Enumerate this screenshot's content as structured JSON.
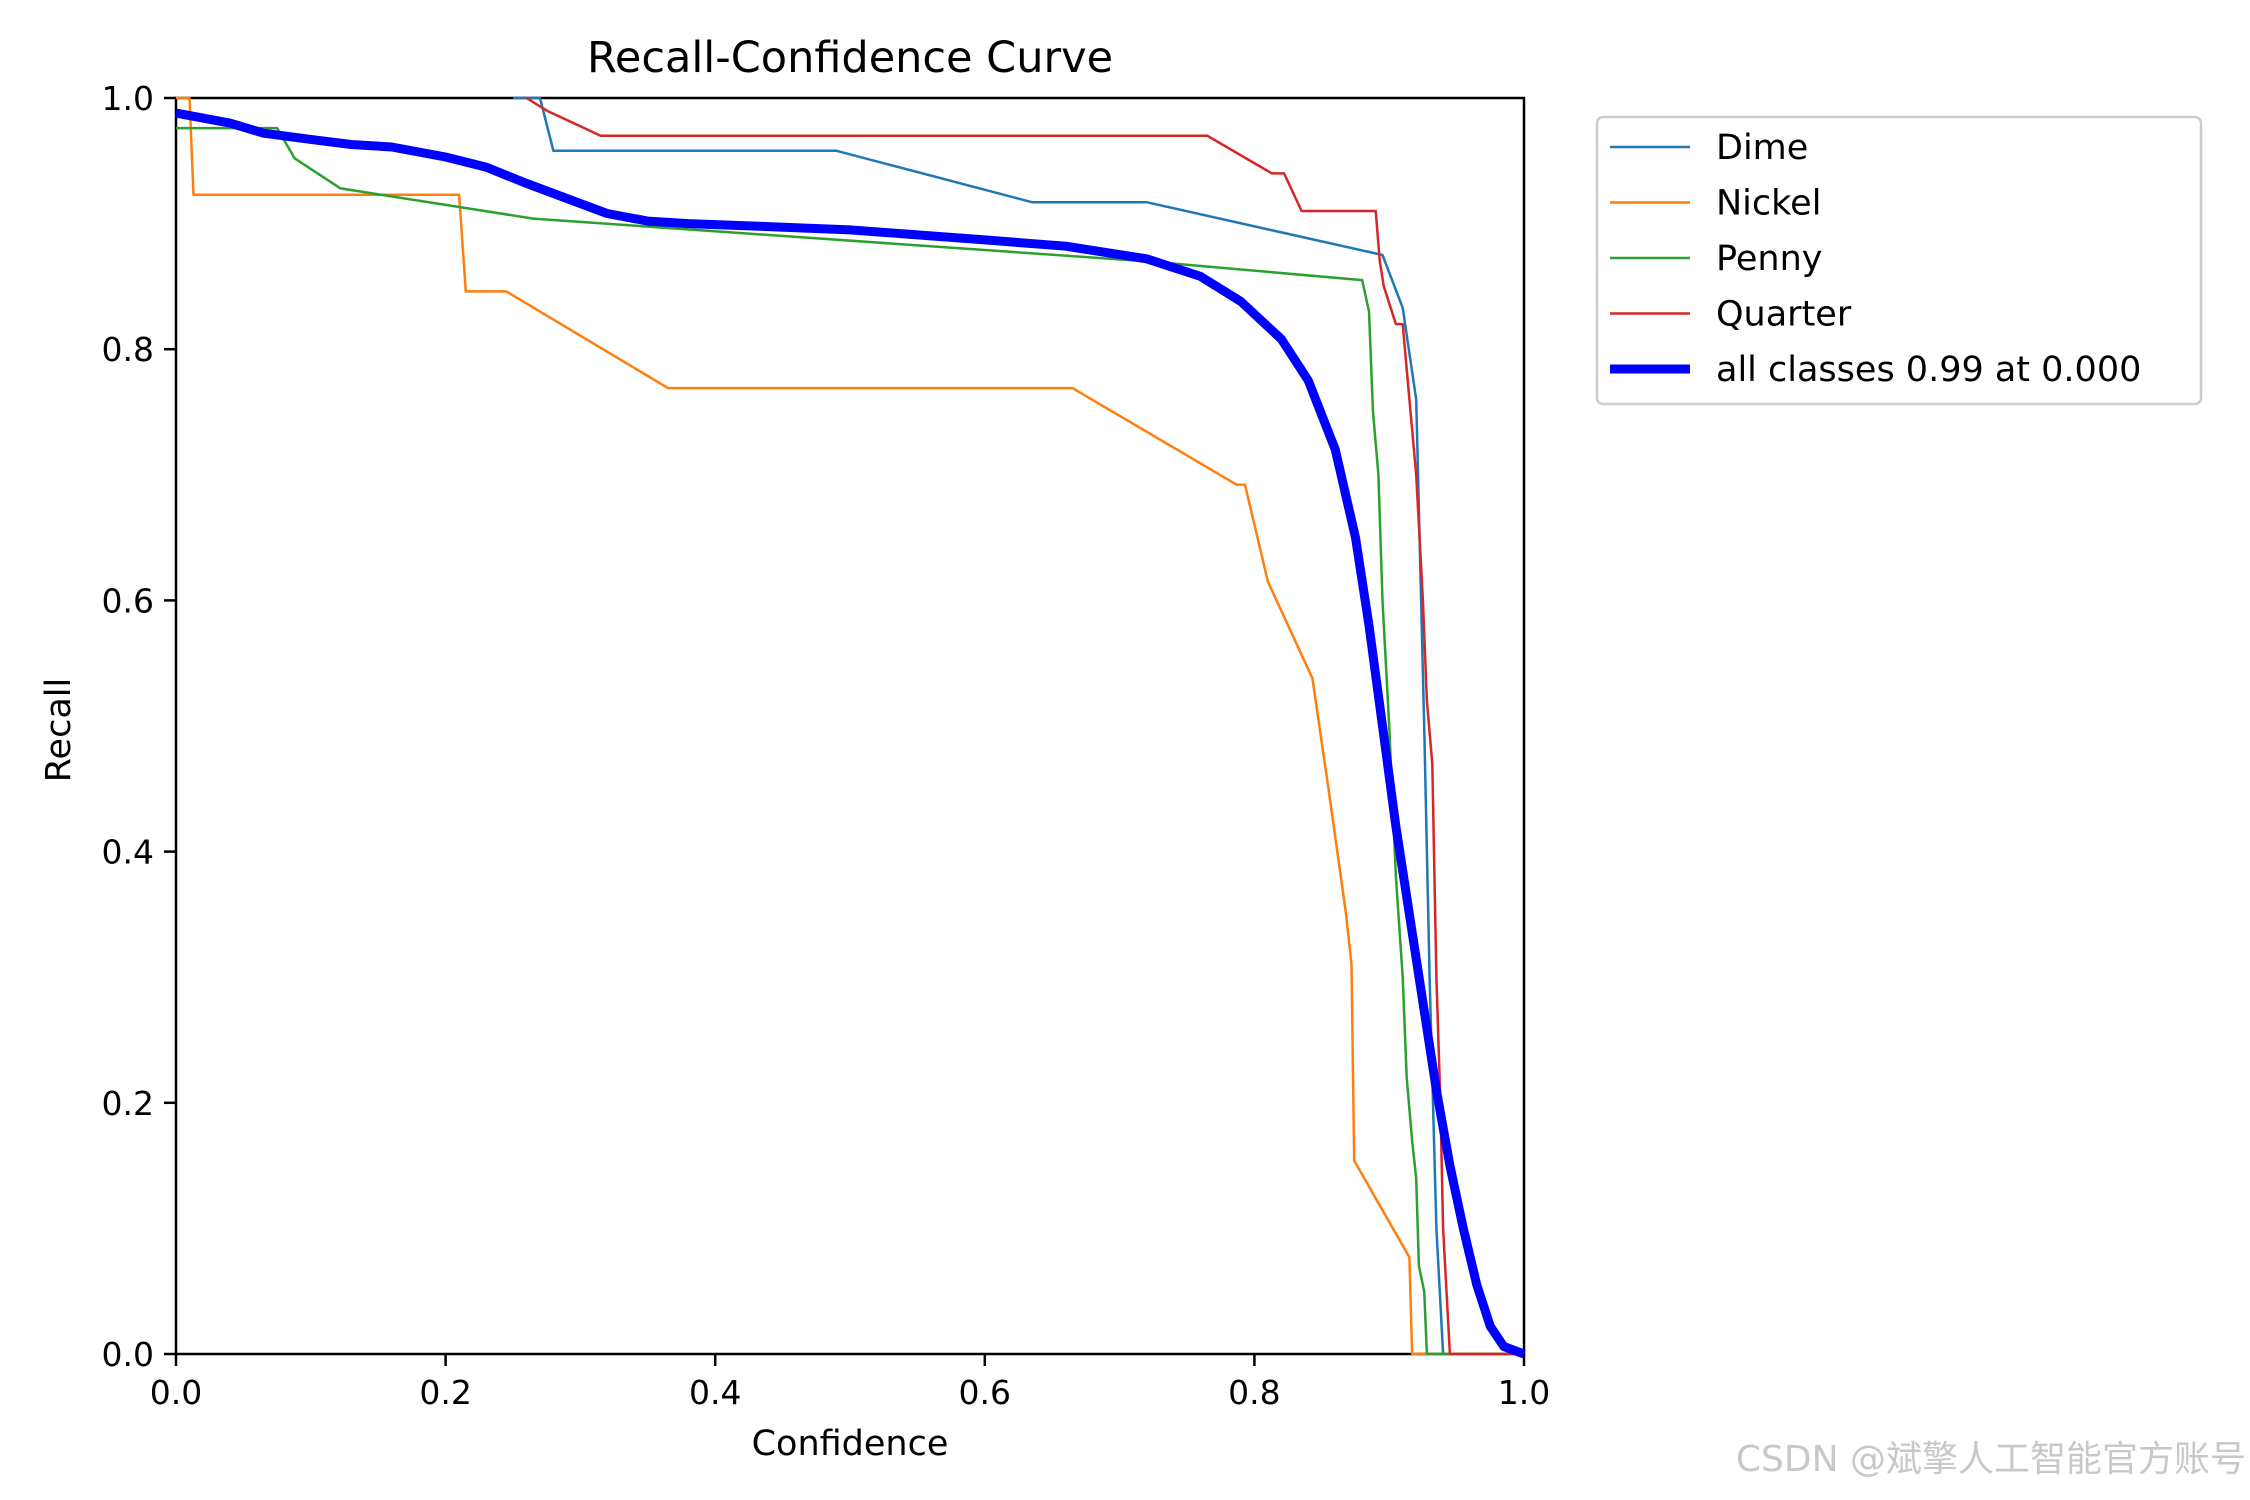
{
  "chart_data": {
    "type": "line",
    "title": "Recall-Confidence Curve",
    "xlabel": "Confidence",
    "ylabel": "Recall",
    "xlim": [
      0.0,
      1.0
    ],
    "ylim": [
      0.0,
      1.0
    ],
    "xticks": [
      "0.0",
      "0.2",
      "0.4",
      "0.6",
      "0.8",
      "1.0"
    ],
    "yticks": [
      "0.0",
      "0.2",
      "0.4",
      "0.6",
      "0.8",
      "1.0"
    ],
    "grid": false,
    "legend_position": "outside-top-right",
    "series": [
      {
        "name": "Dime",
        "color": "#1f77b4",
        "points": [
          [
            0.25,
            1.0
          ],
          [
            0.27,
            1.0
          ],
          [
            0.28,
            0.958
          ],
          [
            0.49,
            0.958
          ],
          [
            0.635,
            0.917
          ],
          [
            0.72,
            0.917
          ],
          [
            0.895,
            0.875
          ],
          [
            0.91,
            0.833
          ],
          [
            0.92,
            0.76
          ],
          [
            0.926,
            0.5
          ],
          [
            0.93,
            0.3
          ],
          [
            0.935,
            0.1
          ],
          [
            0.94,
            0.0
          ],
          [
            1.0,
            0.0
          ]
        ]
      },
      {
        "name": "Nickel",
        "color": "#ff7f0e",
        "points": [
          [
            0.0,
            1.0
          ],
          [
            0.01,
            1.0
          ],
          [
            0.013,
            0.923
          ],
          [
            0.21,
            0.923
          ],
          [
            0.215,
            0.846
          ],
          [
            0.245,
            0.846
          ],
          [
            0.365,
            0.769
          ],
          [
            0.665,
            0.769
          ],
          [
            0.787,
            0.692
          ],
          [
            0.793,
            0.692
          ],
          [
            0.81,
            0.615
          ],
          [
            0.843,
            0.538
          ],
          [
            0.855,
            0.45
          ],
          [
            0.868,
            0.35
          ],
          [
            0.872,
            0.31
          ],
          [
            0.874,
            0.154
          ],
          [
            0.915,
            0.077
          ],
          [
            0.917,
            0.0
          ],
          [
            1.0,
            0.0
          ]
        ]
      },
      {
        "name": "Penny",
        "color": "#2ca02c",
        "points": [
          [
            0.0,
            0.976
          ],
          [
            0.075,
            0.976
          ],
          [
            0.088,
            0.952
          ],
          [
            0.122,
            0.928
          ],
          [
            0.265,
            0.904
          ],
          [
            0.72,
            0.87
          ],
          [
            0.88,
            0.855
          ],
          [
            0.885,
            0.83
          ],
          [
            0.888,
            0.75
          ],
          [
            0.892,
            0.7
          ],
          [
            0.895,
            0.6
          ],
          [
            0.9,
            0.5
          ],
          [
            0.905,
            0.38
          ],
          [
            0.91,
            0.3
          ],
          [
            0.913,
            0.22
          ],
          [
            0.917,
            0.17
          ],
          [
            0.92,
            0.14
          ],
          [
            0.922,
            0.07
          ],
          [
            0.926,
            0.05
          ],
          [
            0.928,
            0.0
          ],
          [
            1.0,
            0.0
          ]
        ]
      },
      {
        "name": "Quarter",
        "color": "#d62728",
        "points": [
          [
            0.26,
            1.0
          ],
          [
            0.275,
            0.99
          ],
          [
            0.315,
            0.97
          ],
          [
            0.765,
            0.97
          ],
          [
            0.813,
            0.94
          ],
          [
            0.822,
            0.94
          ],
          [
            0.835,
            0.91
          ],
          [
            0.89,
            0.91
          ],
          [
            0.893,
            0.87
          ],
          [
            0.896,
            0.85
          ],
          [
            0.905,
            0.82
          ],
          [
            0.91,
            0.82
          ],
          [
            0.915,
            0.76
          ],
          [
            0.92,
            0.7
          ],
          [
            0.925,
            0.6
          ],
          [
            0.928,
            0.52
          ],
          [
            0.932,
            0.47
          ],
          [
            0.935,
            0.3
          ],
          [
            0.938,
            0.2
          ],
          [
            0.94,
            0.1
          ],
          [
            0.945,
            0.0
          ],
          [
            1.0,
            0.0
          ]
        ]
      },
      {
        "name": "all classes 0.99 at 0.000",
        "color": "#0000ff",
        "thick": true,
        "points": [
          [
            0.0,
            0.988
          ],
          [
            0.04,
            0.98
          ],
          [
            0.065,
            0.972
          ],
          [
            0.1,
            0.967
          ],
          [
            0.13,
            0.963
          ],
          [
            0.16,
            0.961
          ],
          [
            0.2,
            0.953
          ],
          [
            0.23,
            0.945
          ],
          [
            0.26,
            0.932
          ],
          [
            0.29,
            0.92
          ],
          [
            0.32,
            0.908
          ],
          [
            0.35,
            0.902
          ],
          [
            0.38,
            0.9
          ],
          [
            0.43,
            0.898
          ],
          [
            0.5,
            0.895
          ],
          [
            0.6,
            0.887
          ],
          [
            0.66,
            0.882
          ],
          [
            0.72,
            0.872
          ],
          [
            0.76,
            0.858
          ],
          [
            0.79,
            0.838
          ],
          [
            0.82,
            0.808
          ],
          [
            0.84,
            0.775
          ],
          [
            0.86,
            0.72
          ],
          [
            0.875,
            0.65
          ],
          [
            0.885,
            0.58
          ],
          [
            0.895,
            0.5
          ],
          [
            0.905,
            0.42
          ],
          [
            0.915,
            0.35
          ],
          [
            0.925,
            0.28
          ],
          [
            0.935,
            0.21
          ],
          [
            0.945,
            0.15
          ],
          [
            0.955,
            0.1
          ],
          [
            0.965,
            0.055
          ],
          [
            0.975,
            0.022
          ],
          [
            0.985,
            0.006
          ],
          [
            0.995,
            0.002
          ],
          [
            1.0,
            0.0
          ]
        ]
      }
    ]
  },
  "watermark": "CSDN @斌擎人工智能官方账号"
}
